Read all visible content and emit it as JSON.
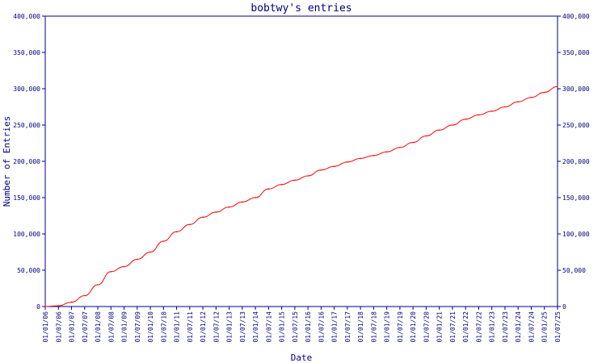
{
  "chart_data": {
    "type": "line",
    "title": "bobtwy's entries",
    "xlabel": "Date",
    "ylabel": "Number of Entries",
    "ylim": [
      0,
      400000
    ],
    "y_ticks": [
      0,
      50000,
      100000,
      150000,
      200000,
      250000,
      300000,
      350000,
      400000
    ],
    "y_tick_labels": [
      "0",
      "50,000",
      "100,000",
      "150,000",
      "200,000",
      "250,000",
      "300,000",
      "350,000",
      "400,000"
    ],
    "x_tick_labels": [
      "01/01/06",
      "01/07/06",
      "01/01/07",
      "01/07/07",
      "01/01/08",
      "01/07/08",
      "01/01/09",
      "01/07/09",
      "01/01/10",
      "01/07/10",
      "01/01/11",
      "01/07/11",
      "01/01/12",
      "01/07/12",
      "01/01/13",
      "01/07/13",
      "01/01/14",
      "01/07/14",
      "01/01/15",
      "01/07/15",
      "01/01/16",
      "01/07/16",
      "01/01/17",
      "01/07/17",
      "01/01/18",
      "01/07/18",
      "01/01/19",
      "01/07/19",
      "01/01/20",
      "01/07/20",
      "01/01/21",
      "01/07/21",
      "01/01/22",
      "01/07/22",
      "01/01/23",
      "01/07/23",
      "01/01/24",
      "01/07/24",
      "01/01/25",
      "01/07/25"
    ],
    "grid": false,
    "line_color": "#ff0000",
    "axis_color": "#000080",
    "series": [
      {
        "x": [
          "01/01/06",
          "01/07/06",
          "01/01/07",
          "01/07/07",
          "01/01/08",
          "01/07/08",
          "01/01/09",
          "01/07/09",
          "01/01/10",
          "01/07/10",
          "01/01/11",
          "01/07/11",
          "01/01/12",
          "01/07/12",
          "01/01/13",
          "01/07/13",
          "01/01/14",
          "01/07/14",
          "01/01/15",
          "01/07/15",
          "01/01/16",
          "01/07/16",
          "01/01/17",
          "01/07/17",
          "01/01/18",
          "01/07/18",
          "01/01/19",
          "01/07/19",
          "01/01/20",
          "01/07/20",
          "01/01/21",
          "01/07/21",
          "01/01/22",
          "01/07/22",
          "01/01/23",
          "01/07/23",
          "01/01/24",
          "01/07/24",
          "01/01/25",
          "01/07/25"
        ],
        "values": [
          0,
          1000,
          6000,
          15000,
          30000,
          48000,
          55000,
          65000,
          75000,
          90000,
          103000,
          113000,
          123000,
          130000,
          137000,
          144000,
          150000,
          162000,
          168000,
          174000,
          180000,
          188000,
          193000,
          199000,
          204000,
          208000,
          213000,
          219000,
          226000,
          235000,
          243000,
          250000,
          258000,
          264000,
          269000,
          275000,
          282000,
          288000,
          295000,
          303000
        ]
      }
    ]
  }
}
